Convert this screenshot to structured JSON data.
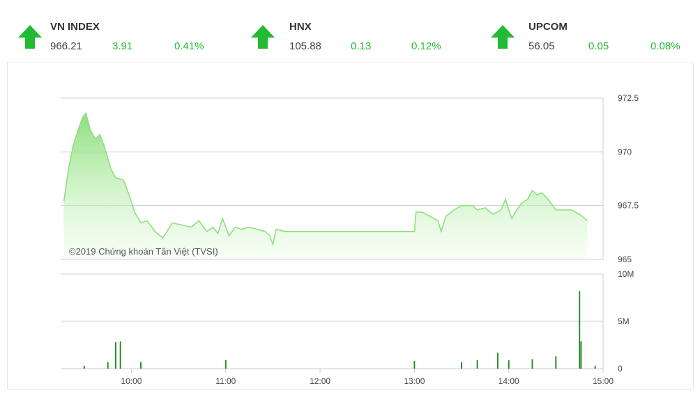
{
  "indices": [
    {
      "name": "VN INDEX",
      "value": "966.21",
      "change": "3.91",
      "percent": "0.41%",
      "active": true
    },
    {
      "name": "HNX",
      "value": "105.88",
      "change": "0.13",
      "percent": "0.12%",
      "active": false
    },
    {
      "name": "UPCOM",
      "value": "56.05",
      "change": "0.05",
      "percent": "0.08%",
      "active": false
    }
  ],
  "colors": {
    "up": "#22bb33",
    "line": "#8fe07f",
    "volume": "#2e8b2e",
    "grid": "#cccccc",
    "value_text": "#444444"
  },
  "icons": {
    "trend": "arrow-up-icon"
  },
  "chart_data": {
    "type": "area",
    "watermark": "©2019 Chứng khoán Tân Việt (TVSI)",
    "x_ticks": [
      "10:00",
      "11:00",
      "12:00",
      "13:00",
      "14:00",
      "15:00"
    ],
    "x_range": [
      "9:15",
      "15:00"
    ],
    "price": {
      "y_ticks": [
        "972.5",
        "970",
        "967.5",
        "965"
      ],
      "ylim": [
        965,
        972.5
      ],
      "points": [
        [
          "9:17",
          967.7
        ],
        [
          "9:20",
          969.2
        ],
        [
          "9:23",
          970.3
        ],
        [
          "9:26",
          971.0
        ],
        [
          "9:29",
          971.6
        ],
        [
          "9:31",
          971.8
        ],
        [
          "9:34",
          971.0
        ],
        [
          "9:37",
          970.6
        ],
        [
          "9:40",
          970.8
        ],
        [
          "9:43",
          970.2
        ],
        [
          "9:47",
          969.2
        ],
        [
          "9:50",
          968.8
        ],
        [
          "9:55",
          968.7
        ],
        [
          "9:59",
          967.9
        ],
        [
          "10:02",
          967.2
        ],
        [
          "10:06",
          966.7
        ],
        [
          "10:10",
          966.8
        ],
        [
          "10:15",
          966.3
        ],
        [
          "10:20",
          966.0
        ],
        [
          "10:26",
          966.7
        ],
        [
          "10:32",
          966.6
        ],
        [
          "10:38",
          966.5
        ],
        [
          "10:43",
          966.8
        ],
        [
          "10:48",
          966.3
        ],
        [
          "10:52",
          966.5
        ],
        [
          "10:55",
          966.2
        ],
        [
          "10:58",
          966.9
        ],
        [
          "11:02",
          966.1
        ],
        [
          "11:06",
          966.5
        ],
        [
          "11:10",
          966.4
        ],
        [
          "11:15",
          966.5
        ],
        [
          "11:20",
          966.4
        ],
        [
          "11:25",
          966.3
        ],
        [
          "11:28",
          966.1
        ],
        [
          "11:30",
          965.7
        ],
        [
          "11:32",
          966.4
        ],
        [
          "11:38",
          966.3
        ],
        [
          "11:50",
          966.3
        ],
        [
          "12:10",
          966.3
        ],
        [
          "12:30",
          966.3
        ],
        [
          "13:00",
          966.3
        ],
        [
          "13:01",
          967.2
        ],
        [
          "13:05",
          967.2
        ],
        [
          "13:10",
          967.0
        ],
        [
          "13:15",
          966.8
        ],
        [
          "13:17",
          966.3
        ],
        [
          "13:20",
          967.0
        ],
        [
          "13:25",
          967.3
        ],
        [
          "13:30",
          967.5
        ],
        [
          "13:37",
          967.5
        ],
        [
          "13:40",
          967.3
        ],
        [
          "13:45",
          967.4
        ],
        [
          "13:50",
          967.1
        ],
        [
          "13:55",
          967.3
        ],
        [
          "13:58",
          967.8
        ],
        [
          "14:00",
          967.3
        ],
        [
          "14:02",
          966.9
        ],
        [
          "14:05",
          967.3
        ],
        [
          "14:08",
          967.6
        ],
        [
          "14:12",
          967.8
        ],
        [
          "14:15",
          968.2
        ],
        [
          "14:18",
          968.0
        ],
        [
          "14:21",
          968.1
        ],
        [
          "14:25",
          967.8
        ],
        [
          "14:28",
          967.5
        ],
        [
          "14:30",
          967.3
        ],
        [
          "14:40",
          967.3
        ],
        [
          "14:45",
          967.1
        ],
        [
          "14:50",
          966.8
        ]
      ]
    },
    "volume": {
      "y_ticks": [
        "10M",
        "5M",
        "0"
      ],
      "ylim": [
        0,
        10
      ],
      "unit": "M",
      "bars": [
        [
          "9:30",
          0.3
        ],
        [
          "9:45",
          0.7
        ],
        [
          "9:50",
          2.8
        ],
        [
          "9:53",
          2.9
        ],
        [
          "10:06",
          0.7
        ],
        [
          "11:00",
          0.9
        ],
        [
          "13:00",
          0.8
        ],
        [
          "13:30",
          0.7
        ],
        [
          "13:40",
          0.9
        ],
        [
          "13:53",
          1.7
        ],
        [
          "14:00",
          0.9
        ],
        [
          "14:15",
          1.0
        ],
        [
          "14:30",
          1.3
        ],
        [
          "14:45",
          8.2
        ],
        [
          "14:46",
          2.9
        ],
        [
          "14:55",
          0.3
        ]
      ]
    }
  }
}
